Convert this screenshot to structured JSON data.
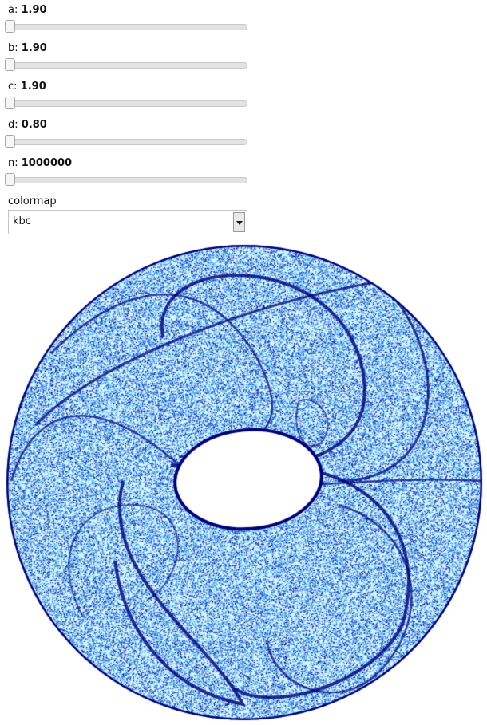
{
  "sliders": [
    {
      "id": "a",
      "label": "a:",
      "value": "1.90"
    },
    {
      "id": "b",
      "label": "b:",
      "value": "1.90"
    },
    {
      "id": "c",
      "label": "c:",
      "value": "1.90"
    },
    {
      "id": "d",
      "label": "d:",
      "value": "0.80"
    },
    {
      "id": "n",
      "label": "n:",
      "value": "1000000"
    }
  ],
  "colormap": {
    "label": "colormap",
    "selected": "kbc"
  },
  "colors": {
    "dark_blue": "#00007a",
    "mid_blue": "#0a3fd6",
    "light_blue": "#3aa8f0",
    "pale_cyan": "#d6f6ff"
  }
}
